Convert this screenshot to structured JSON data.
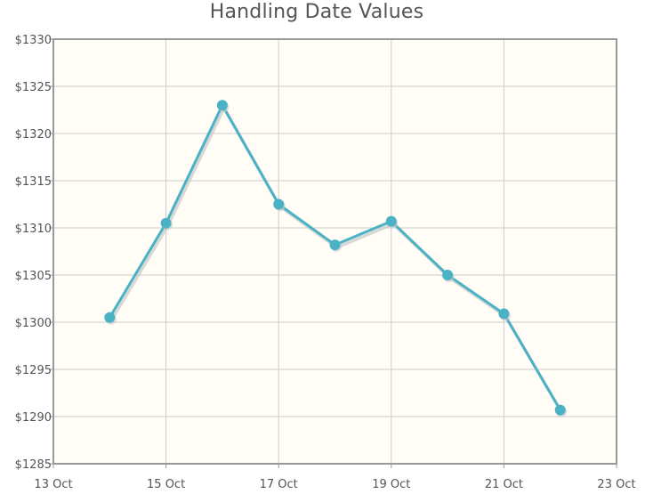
{
  "chart_data": {
    "type": "line",
    "title": "Handling Date Values",
    "xlabel": "",
    "ylabel": "",
    "x_axis_type": "date",
    "x_tick_labels": [
      "13 Oct",
      "15 Oct",
      "17 Oct",
      "19 Oct",
      "21 Oct",
      "23 Oct"
    ],
    "xlim": [
      "13 Oct",
      "23 Oct"
    ],
    "y_tick_labels": [
      "$1285",
      "$1290",
      "$1295",
      "$1300",
      "$1305",
      "$1310",
      "$1315",
      "$1320",
      "$1325",
      "$1330"
    ],
    "ylim": [
      1285,
      1330
    ],
    "grid": true,
    "legend": "none",
    "series": [
      {
        "color": "#4bb2c5",
        "points": [
          {
            "x": "14 Oct",
            "y": 1300.5
          },
          {
            "x": "15 Oct",
            "y": 1310.5
          },
          {
            "x": "16 Oct",
            "y": 1323.0
          },
          {
            "x": "17 Oct",
            "y": 1312.5
          },
          {
            "x": "18 Oct",
            "y": 1308.2
          },
          {
            "x": "19 Oct",
            "y": 1310.7
          },
          {
            "x": "20 Oct",
            "y": 1305.0
          },
          {
            "x": "21 Oct",
            "y": 1300.9
          },
          {
            "x": "22 Oct",
            "y": 1290.7
          }
        ]
      }
    ],
    "colors": {
      "plot_background": "#fffdf6",
      "grid": "#cccccc",
      "border": "#999999",
      "line": "#4bb2c5",
      "shadow": "#c8c8c8"
    }
  }
}
